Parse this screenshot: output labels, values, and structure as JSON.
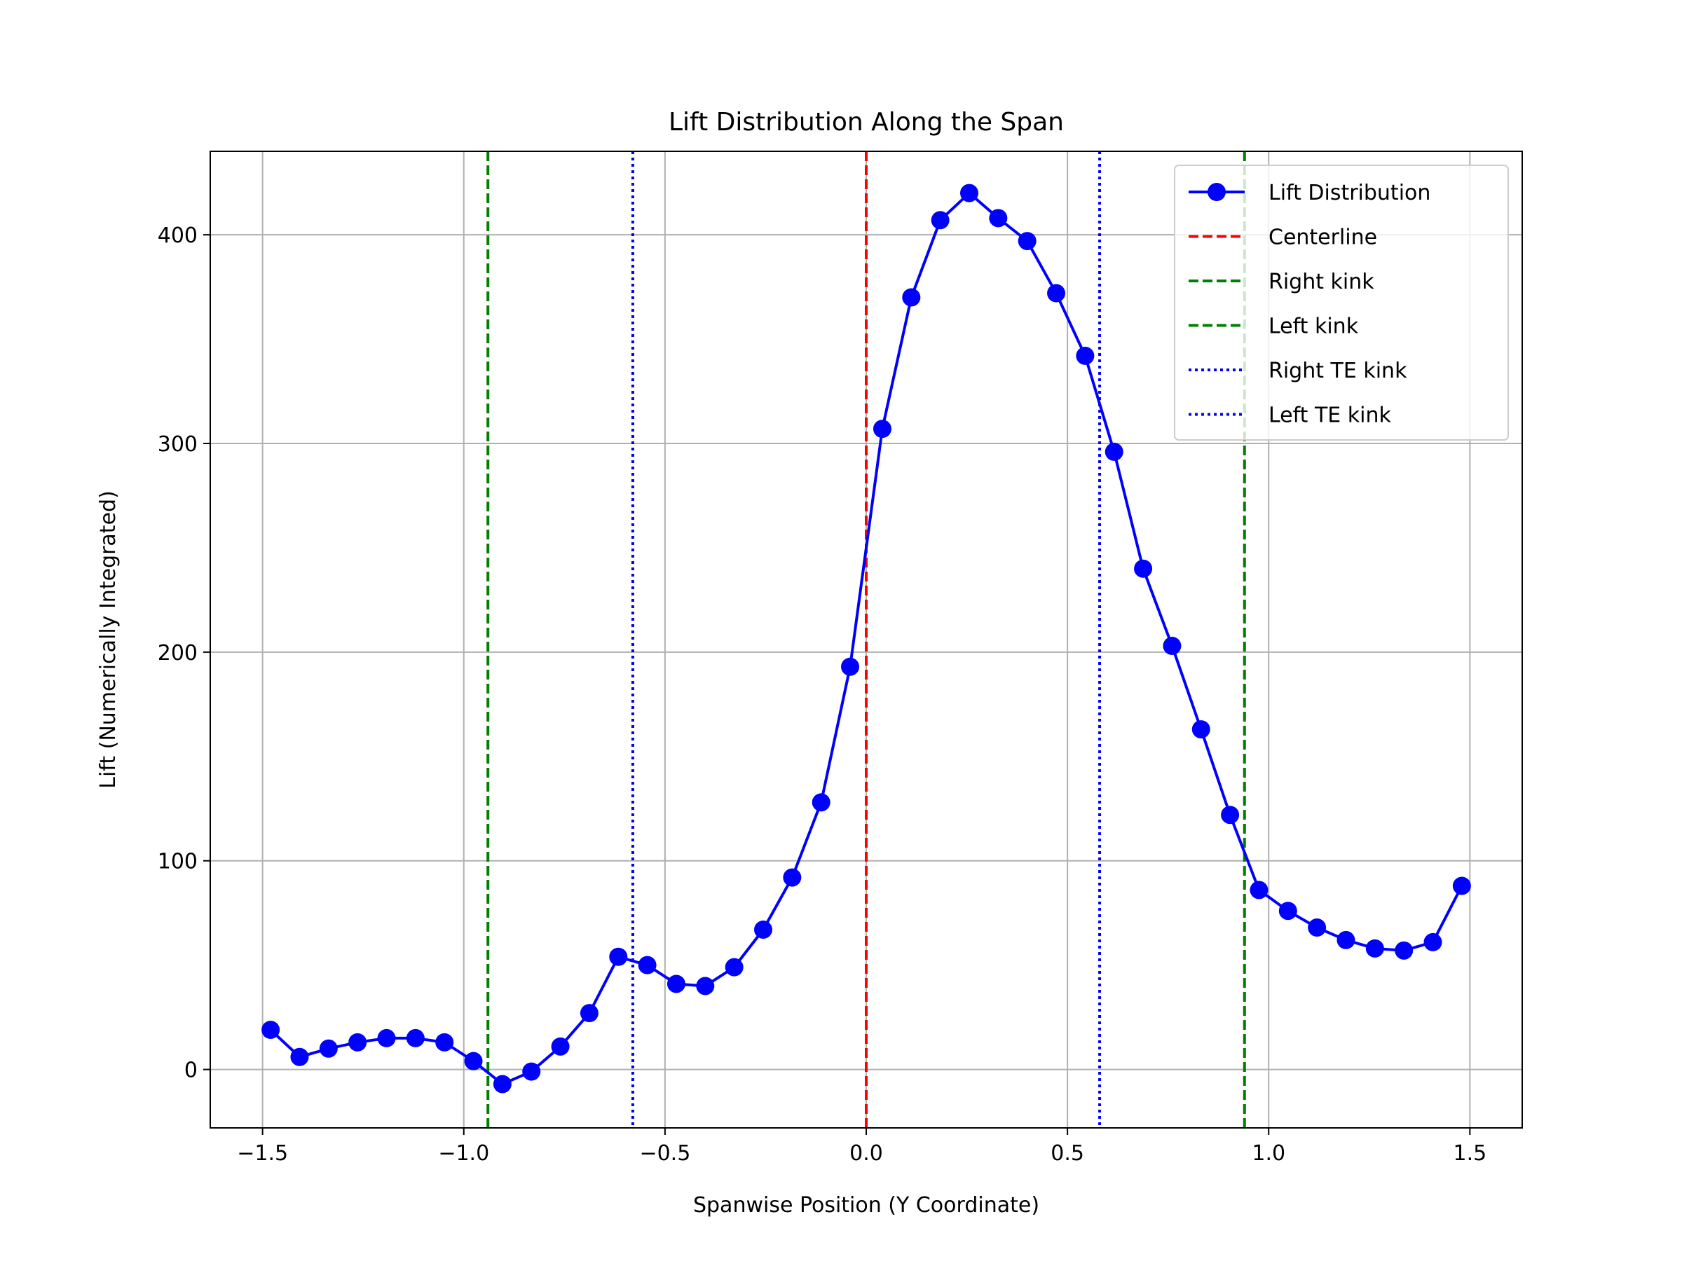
{
  "chart_data": {
    "type": "line",
    "title": "Lift Distribution Along the Span",
    "xlabel": "Spanwise Position (Y Coordinate)",
    "ylabel": "Lift (Numerically Integrated)",
    "xlim": [
      -1.63,
      1.63
    ],
    "ylim": [
      -28,
      440
    ],
    "xticks": [
      -1.5,
      -1.0,
      -0.5,
      0.0,
      0.5,
      1.0,
      1.5
    ],
    "xtick_labels": [
      "−1.5",
      "−1.0",
      "−0.5",
      "0.0",
      "0.5",
      "1.0",
      "1.5"
    ],
    "yticks": [
      0,
      100,
      200,
      300,
      400
    ],
    "ytick_labels": [
      "0",
      "100",
      "200",
      "300",
      "400"
    ],
    "grid": true,
    "legend_position": "upper right",
    "series": [
      {
        "name": "Lift Distribution",
        "color": "#0000ff",
        "style": "solid-with-circle-markers",
        "x": [
          -1.48,
          -1.408,
          -1.336,
          -1.264,
          -1.192,
          -1.12,
          -1.048,
          -0.976,
          -0.904,
          -0.832,
          -0.76,
          -0.688,
          -0.616,
          -0.544,
          -0.472,
          -0.4,
          -0.328,
          -0.256,
          -0.184,
          -0.112,
          -0.04,
          0.04,
          0.112,
          0.184,
          0.256,
          0.328,
          0.4,
          0.472,
          0.544,
          0.616,
          0.688,
          0.76,
          0.832,
          0.904,
          0.976,
          1.048,
          1.12,
          1.192,
          1.264,
          1.336,
          1.408,
          1.48
        ],
        "y": [
          19,
          6,
          10,
          13,
          15,
          15,
          13,
          4,
          -7,
          -1,
          11,
          27,
          54,
          50,
          41,
          40,
          49,
          67,
          92,
          128,
          193,
          307,
          370,
          407,
          420,
          408,
          397,
          372,
          342,
          296,
          240,
          203,
          163,
          122,
          86,
          76,
          68,
          62,
          58,
          57,
          61,
          88
        ]
      }
    ],
    "reference_lines": [
      {
        "name": "Centerline",
        "x": 0.0,
        "color": "#ff0000",
        "style": "dashed"
      },
      {
        "name": "Right kink",
        "x": 0.94,
        "color": "#008000",
        "style": "dashed"
      },
      {
        "name": "Left kink",
        "x": -0.94,
        "color": "#008000",
        "style": "dashed"
      },
      {
        "name": "Right TE kink",
        "x": 0.58,
        "color": "#0000ff",
        "style": "dotted"
      },
      {
        "name": "Left TE kink",
        "x": -0.58,
        "color": "#0000ff",
        "style": "dotted"
      }
    ]
  }
}
